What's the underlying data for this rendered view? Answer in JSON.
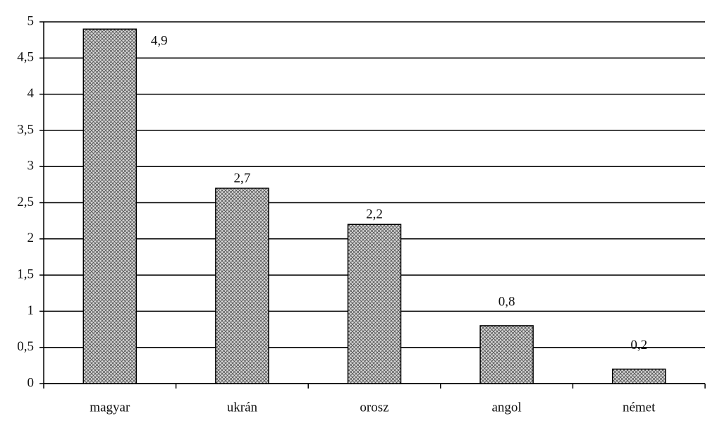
{
  "chart_data": {
    "type": "bar",
    "categories": [
      "magyar",
      "ukrán",
      "orosz",
      "angol",
      "német"
    ],
    "values": [
      4.9,
      2.7,
      2.2,
      0.8,
      0.2
    ],
    "value_labels": [
      "4,9",
      "2,7",
      "2,2",
      "0,8",
      "0,2"
    ],
    "color": "#b0b0b0",
    "ylim": [
      0,
      5
    ],
    "yticks": [
      0,
      {
        "value": 0.5,
        "label": "0,5"
      },
      1,
      {
        "value": 1.5,
        "label": "1,5"
      },
      2,
      {
        "value": 2.5,
        "label": "2,5"
      },
      3,
      {
        "value": 3.5,
        "label": "3,5"
      },
      4,
      {
        "value": 4.5,
        "label": "4,5"
      },
      5
    ],
    "grid": true
  }
}
